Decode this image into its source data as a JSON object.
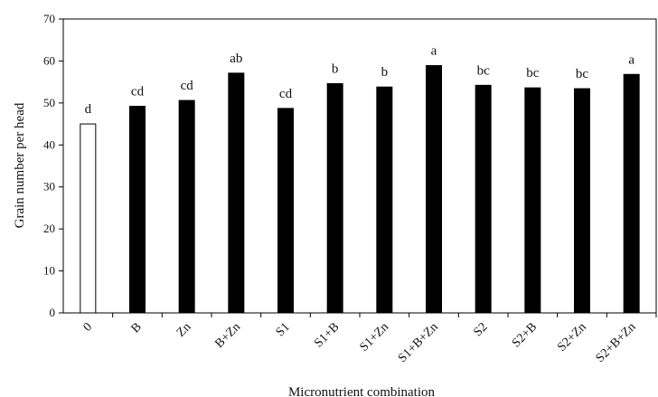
{
  "chart_data": {
    "type": "bar",
    "title": "",
    "xlabel": "Micronutrient combination",
    "ylabel": "Grain number per head",
    "ylim": [
      0,
      70
    ],
    "yticks": [
      "0",
      "10",
      "20",
      "30",
      "40",
      "50",
      "60",
      "70"
    ],
    "grid": false,
    "legend": "none",
    "categories": [
      "0",
      "B",
      "Zn",
      "B+Zn",
      "S1",
      "S1+B",
      "S1+Zn",
      "S1+B+Zn",
      "S2",
      "S2+B",
      "S2+Zn",
      "S2+B+Zn"
    ],
    "values": [
      45,
      49.2,
      50.6,
      57.1,
      48.7,
      54.6,
      53.8,
      58.9,
      54.2,
      53.6,
      53.4,
      56.8
    ],
    "labels": [
      "d",
      "cd",
      "cd",
      "ab",
      "cd",
      "b",
      "b",
      "a",
      "bc",
      "bc",
      "bc",
      "a"
    ],
    "bar_fills": [
      "#ffffff",
      "#000000",
      "#000000",
      "#000000",
      "#000000",
      "#000000",
      "#000000",
      "#000000",
      "#000000",
      "#000000",
      "#000000",
      "#000000"
    ],
    "bar_stroke": "#000000",
    "axis_color": "#000000"
  }
}
